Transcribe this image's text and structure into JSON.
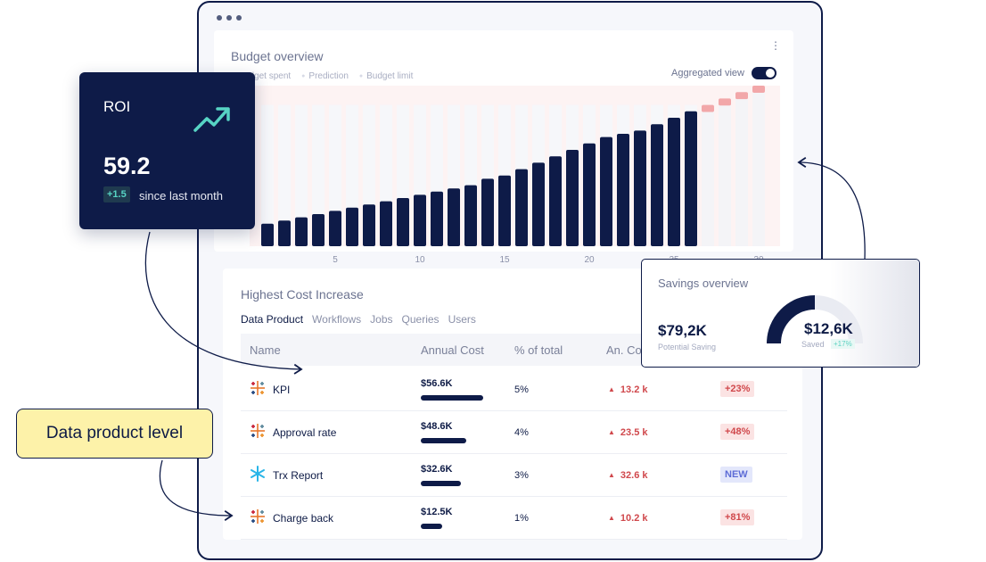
{
  "budget": {
    "title": "Budget overview",
    "legend": [
      "Budget spent",
      "Prediction",
      "Budget limit"
    ],
    "aggregated_label": "Aggregated view"
  },
  "chart_data": {
    "type": "bar",
    "title": "Budget overview",
    "x_ticks": [
      5,
      10,
      15,
      20,
      25,
      30
    ],
    "x": [
      1,
      2,
      3,
      4,
      5,
      6,
      7,
      8,
      9,
      10,
      11,
      12,
      13,
      14,
      15,
      16,
      17,
      18,
      19,
      20,
      21,
      22,
      23,
      24,
      25,
      26,
      27,
      28,
      29,
      30
    ],
    "series": [
      {
        "name": "Budget spent",
        "values": [
          14,
          16,
          18,
          20,
          22,
          24,
          26,
          28,
          30,
          32,
          34,
          36,
          38,
          42,
          44,
          48,
          52,
          56,
          60,
          64,
          68,
          70,
          72,
          76,
          80,
          84,
          null,
          null,
          null,
          null
        ]
      },
      {
        "name": "Prediction",
        "values": [
          null,
          null,
          null,
          null,
          null,
          null,
          null,
          null,
          null,
          null,
          null,
          null,
          null,
          null,
          null,
          null,
          null,
          null,
          null,
          null,
          null,
          null,
          null,
          null,
          null,
          null,
          88,
          92,
          96,
          100
        ]
      }
    ],
    "legend_position": "top-left"
  },
  "roi": {
    "title": "ROI",
    "value": "59.2",
    "delta": "+1.5",
    "since": "since last month"
  },
  "cost": {
    "title": "Highest Cost  Increase",
    "tabs": [
      "Data Product",
      "Workflows",
      "Jobs",
      "Queries",
      "Users"
    ],
    "headers": [
      "Name",
      "Annual Cost",
      "% of total",
      "An. Co"
    ],
    "rows": [
      {
        "name": "KPI",
        "cost": "$56.6K",
        "share": 0.7,
        "pct": "5%",
        "change": "13.2 k",
        "badge": "+23%",
        "badge_type": "red"
      },
      {
        "name": "Approval rate",
        "cost": "$48.6K",
        "share": 0.51,
        "pct": "4%",
        "change": "23.5 k",
        "badge": "+48%",
        "badge_type": "red"
      },
      {
        "name": "Trx Report",
        "cost": "$32.6K",
        "share": 0.45,
        "pct": "3%",
        "change": "32.6 k",
        "badge": "NEW",
        "badge_type": "blue"
      },
      {
        "name": "Charge back",
        "cost": "$12.5K",
        "share": 0.24,
        "pct": "1%",
        "change": "10.2 k",
        "badge": "+81%",
        "badge_type": "red"
      }
    ]
  },
  "savings": {
    "title": "Savings overview",
    "potential_value": "$79,2K",
    "potential_label": "Potential Saving",
    "saved_value": "$12,6K",
    "saved_label": "Saved",
    "saved_delta": "+17%"
  },
  "callout": {
    "label": "Data product level"
  },
  "colors": {
    "navy": "#0e1b48",
    "prediction": "#f2a7a9",
    "callout": "#fdf2a9",
    "accent": "#57d4c4"
  }
}
